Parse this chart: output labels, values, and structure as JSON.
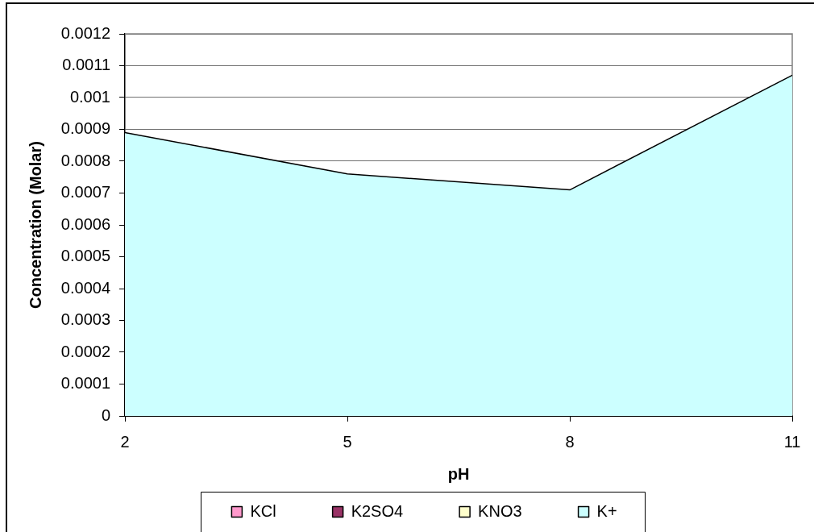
{
  "chart_data": {
    "type": "area",
    "xlabel": "pH",
    "ylabel": "Concentration (Molar)",
    "categories": [
      "2",
      "5",
      "8",
      "11"
    ],
    "series": [
      {
        "name": "KCl",
        "color": "#ff99cc",
        "values": [
          null,
          null,
          null,
          null
        ]
      },
      {
        "name": "K2SO4",
        "color": "#993366",
        "values": [
          null,
          null,
          null,
          null
        ]
      },
      {
        "name": "KNO3",
        "color": "#ffffcc",
        "values": [
          null,
          null,
          null,
          null
        ]
      },
      {
        "name": "K+",
        "color": "#ccffff",
        "values": [
          0.00089,
          0.00076,
          0.00071,
          0.00107
        ]
      }
    ],
    "ylim": [
      0,
      0.0012
    ],
    "yticks": [
      0,
      0.0001,
      0.0002,
      0.0003,
      0.0004,
      0.0005,
      0.0006,
      0.0007,
      0.0008,
      0.0009,
      0.001,
      0.0011,
      0.0012
    ],
    "grid": "y",
    "legend": "bottom"
  }
}
